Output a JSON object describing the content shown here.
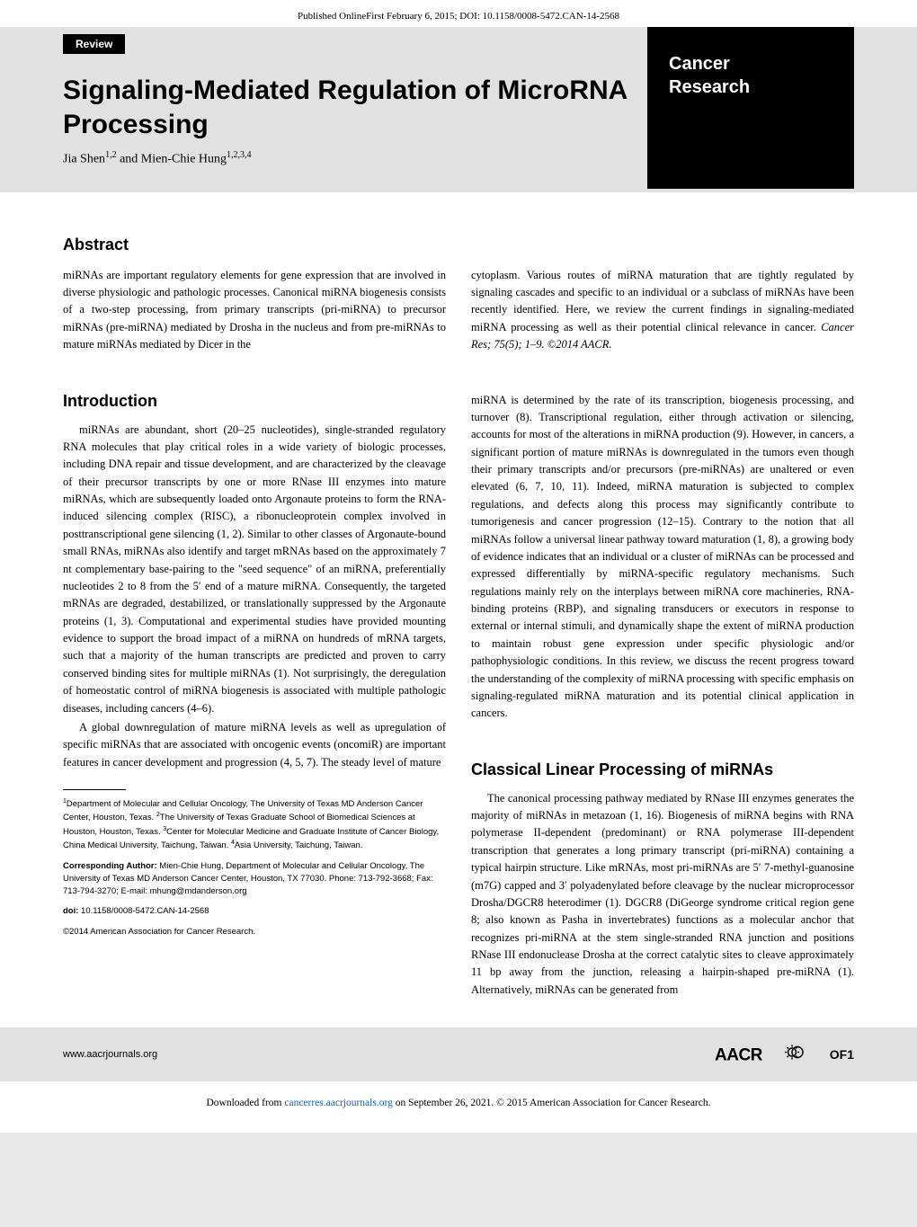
{
  "meta": {
    "published_line": "Published OnlineFirst February 6, 2015; DOI: 10.1158/0008-5472.CAN-14-2568"
  },
  "header": {
    "review_label": "Review",
    "journal_line1": "Cancer",
    "journal_line2": "Research",
    "title": "Signaling-Mediated Regulation of MicroRNA Processing",
    "authors_html": "Jia Shen<sup>1,2</sup> and Mien-Chie Hung<sup>1,2,3,4</sup>"
  },
  "abstract": {
    "heading": "Abstract",
    "left": "miRNAs are important regulatory elements for gene expression that are involved in diverse physiologic and pathologic processes. Canonical miRNA biogenesis consists of a two-step processing, from primary transcripts (pri-miRNA) to precursor miRNAs (pre-miRNA) mediated by Drosha in the nucleus and from pre-miRNAs to mature miRNAs mediated by Dicer in the",
    "right_html": "cytoplasm. Various routes of miRNA maturation that are tightly regulated by signaling cascades and specific to an individual or a subclass of miRNAs have been recently identified. Here, we review the current findings in signaling-mediated miRNA processing as well as their potential clinical relevance in cancer. <em>Cancer Res; 75(5); 1–9. ©2014 AACR.</em>"
  },
  "sections": {
    "introduction_heading": "Introduction",
    "classical_heading": "Classical Linear Processing of miRNAs",
    "col1_p1": "miRNAs are abundant, short (20–25 nucleotides), single-stranded regulatory RNA molecules that play critical roles in a wide variety of biologic processes, including DNA repair and tissue development, and are characterized by the cleavage of their precursor transcripts by one or more RNase III enzymes into mature miRNAs, which are subsequently loaded onto Argonaute proteins to form the RNA-induced silencing complex (RISC), a ribonucleoprotein complex involved in posttranscriptional gene silencing (1, 2). Similar to other classes of Argonaute-bound small RNAs, miRNAs also identify and target mRNAs based on the approximately 7 nt complementary base-pairing to the \"seed sequence\" of an miRNA, preferentially nucleotides 2 to 8 from the 5′ end of a mature miRNA. Consequently, the targeted mRNAs are degraded, destabilized, or translationally suppressed by the Argonaute proteins (1, 3). Computational and experimental studies have provided mounting evidence to support the broad impact of a miRNA on hundreds of mRNA targets, such that a majority of the human transcripts are predicted and proven to carry conserved binding sites for multiple miRNAs (1). Not surprisingly, the deregulation of homeostatic control of miRNA biogenesis is associated with multiple pathologic diseases, including cancers (4–6).",
    "col1_p2": "A global downregulation of mature miRNA levels as well as upregulation of specific miRNAs that are associated with oncogenic events (oncomiR) are important features in cancer development and progression (4, 5, 7). The steady level of mature",
    "col2_p1": "miRNA is determined by the rate of its transcription, biogenesis processing, and turnover (8). Transcriptional regulation, either through activation or silencing, accounts for most of the alterations in miRNA production (9). However, in cancers, a significant portion of mature miRNAs is downregulated in the tumors even though their primary transcripts and/or precursors (pre-miRNAs) are unaltered or even elevated (6, 7, 10, 11). Indeed, miRNA maturation is subjected to complex regulations, and defects along this process may significantly contribute to tumorigenesis and cancer progression (12–15). Contrary to the notion that all miRNAs follow a universal linear pathway toward maturation (1, 8), a growing body of evidence indicates that an individual or a cluster of miRNAs can be processed and expressed differentially by miRNA-specific regulatory mechanisms. Such regulations mainly rely on the interplays between miRNA core machineries, RNA-binding proteins (RBP), and signaling transducers or executors in response to external or internal stimuli, and dynamically shape the extent of miRNA production to maintain robust gene expression under specific physiologic and/or pathophysiologic conditions. In this review, we discuss the recent progress toward the understanding of the complexity of miRNA processing with specific emphasis on signaling-regulated miRNA maturation and its potential clinical application in cancers.",
    "col2_p2": "The canonical processing pathway mediated by RNase III enzymes generates the majority of miRNAs in metazoan (1, 16). Biogenesis of miRNA begins with RNA polymerase II-dependent (predominant) or RNA polymerase III-dependent transcription that generates a long primary transcript (pri-miRNA) containing a typical hairpin structure. Like mRNAs, most pri-miRNAs are 5′ 7-methyl-guanosine (m7G) capped and 3′ polyadenylated before cleavage by the nuclear microprocessor Drosha/DGCR8 heterodimer (1). DGCR8 (DiGeorge syndrome critical region gene 8; also known as Pasha in invertebrates) functions as a molecular anchor that recognizes pri-miRNA at the stem single-stranded RNA junction and positions RNase III endonuclease Drosha at the correct catalytic sites to cleave approximately 11 bp away from the junction, releasing a hairpin-shaped pre-miRNA (1). Alternatively, miRNAs can be generated from"
  },
  "footnotes": {
    "affiliations_html": "<sup>1</sup>Department of Molecular and Cellular Oncology, The University of Texas MD Anderson Cancer Center, Houston, Texas. <sup>2</sup>The University of Texas Graduate School of Biomedical Sciences at Houston, Houston, Texas. <sup>3</sup>Center for Molecular Medicine and Graduate Institute of Cancer Biology, China Medical University, Taichung, Taiwan. <sup>4</sup>Asia University, Taichung, Taiwan.",
    "corresponding_html": "<b>Corresponding Author:</b> Mien-Chie Hung, Department of Molecular and Cellular Oncology, The University of Texas MD Anderson Cancer Center, Houston, TX 77030. Phone: 713-792-3668; Fax: 713-794-3270; E-mail: mhung@mdanderson.org",
    "doi_html": "<b>doi:</b> 10.1158/0008-5472.CAN-14-2568",
    "copyright": "©2014 American Association for Cancer Research."
  },
  "footer": {
    "url": "www.aacrjournals.org",
    "page_number": "OF1",
    "download_prefix": "Downloaded from ",
    "download_link_text": "cancerres.aacrjournals.org",
    "download_suffix": " on September 26, 2021. © 2015 American Association for Cancer Research."
  },
  "colors": {
    "band_gray": "#e1e1e1",
    "link_blue": "#0066cc"
  }
}
